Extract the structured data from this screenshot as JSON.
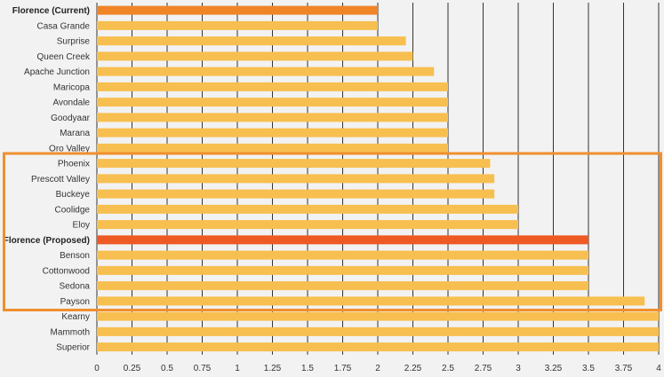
{
  "chart_data": {
    "type": "bar",
    "orientation": "horizontal",
    "title": "",
    "xlabel": "",
    "ylabel": "",
    "xlim": [
      0,
      4
    ],
    "grid": "vertical",
    "categories": [
      "Florence (Current)",
      "Casa Grande",
      "Surprise",
      "Queen Creek",
      "Apache Junction",
      "Maricopa",
      "Avondale",
      "Goodyaar",
      "Marana",
      "Oro Valley",
      "Phoenix",
      "Prescott Valley",
      "Buckeye",
      "Coolidge",
      "Eloy",
      "Florence (Proposed)",
      "Benson",
      "Cottonwood",
      "Sedona",
      "Payson",
      "Kearny",
      "Mammoth",
      "Superior"
    ],
    "values": [
      2.0,
      2.0,
      2.2,
      2.25,
      2.4,
      2.5,
      2.5,
      2.5,
      2.5,
      2.5,
      2.8,
      2.83,
      2.83,
      3.0,
      3.0,
      3.5,
      3.5,
      3.5,
      3.5,
      3.9,
      4.0,
      4.0,
      4.0
    ],
    "highlighted": [
      "Florence (Current)",
      "Florence (Proposed)"
    ],
    "ticks": [
      "0",
      "0.25",
      "0.5",
      "0.75",
      "1",
      "1.25",
      "1.5",
      "1.75",
      "2",
      "2.25",
      "2.5",
      "2.75",
      "3",
      "3.25",
      "3.5",
      "3.75",
      "4"
    ],
    "colors": {
      "bar": "#f7bf4f",
      "current": "#f08528",
      "proposed": "#ee5a24",
      "grid": "#333333",
      "highlight_box": "#f08f2e",
      "background": "#f2f2f2"
    }
  }
}
